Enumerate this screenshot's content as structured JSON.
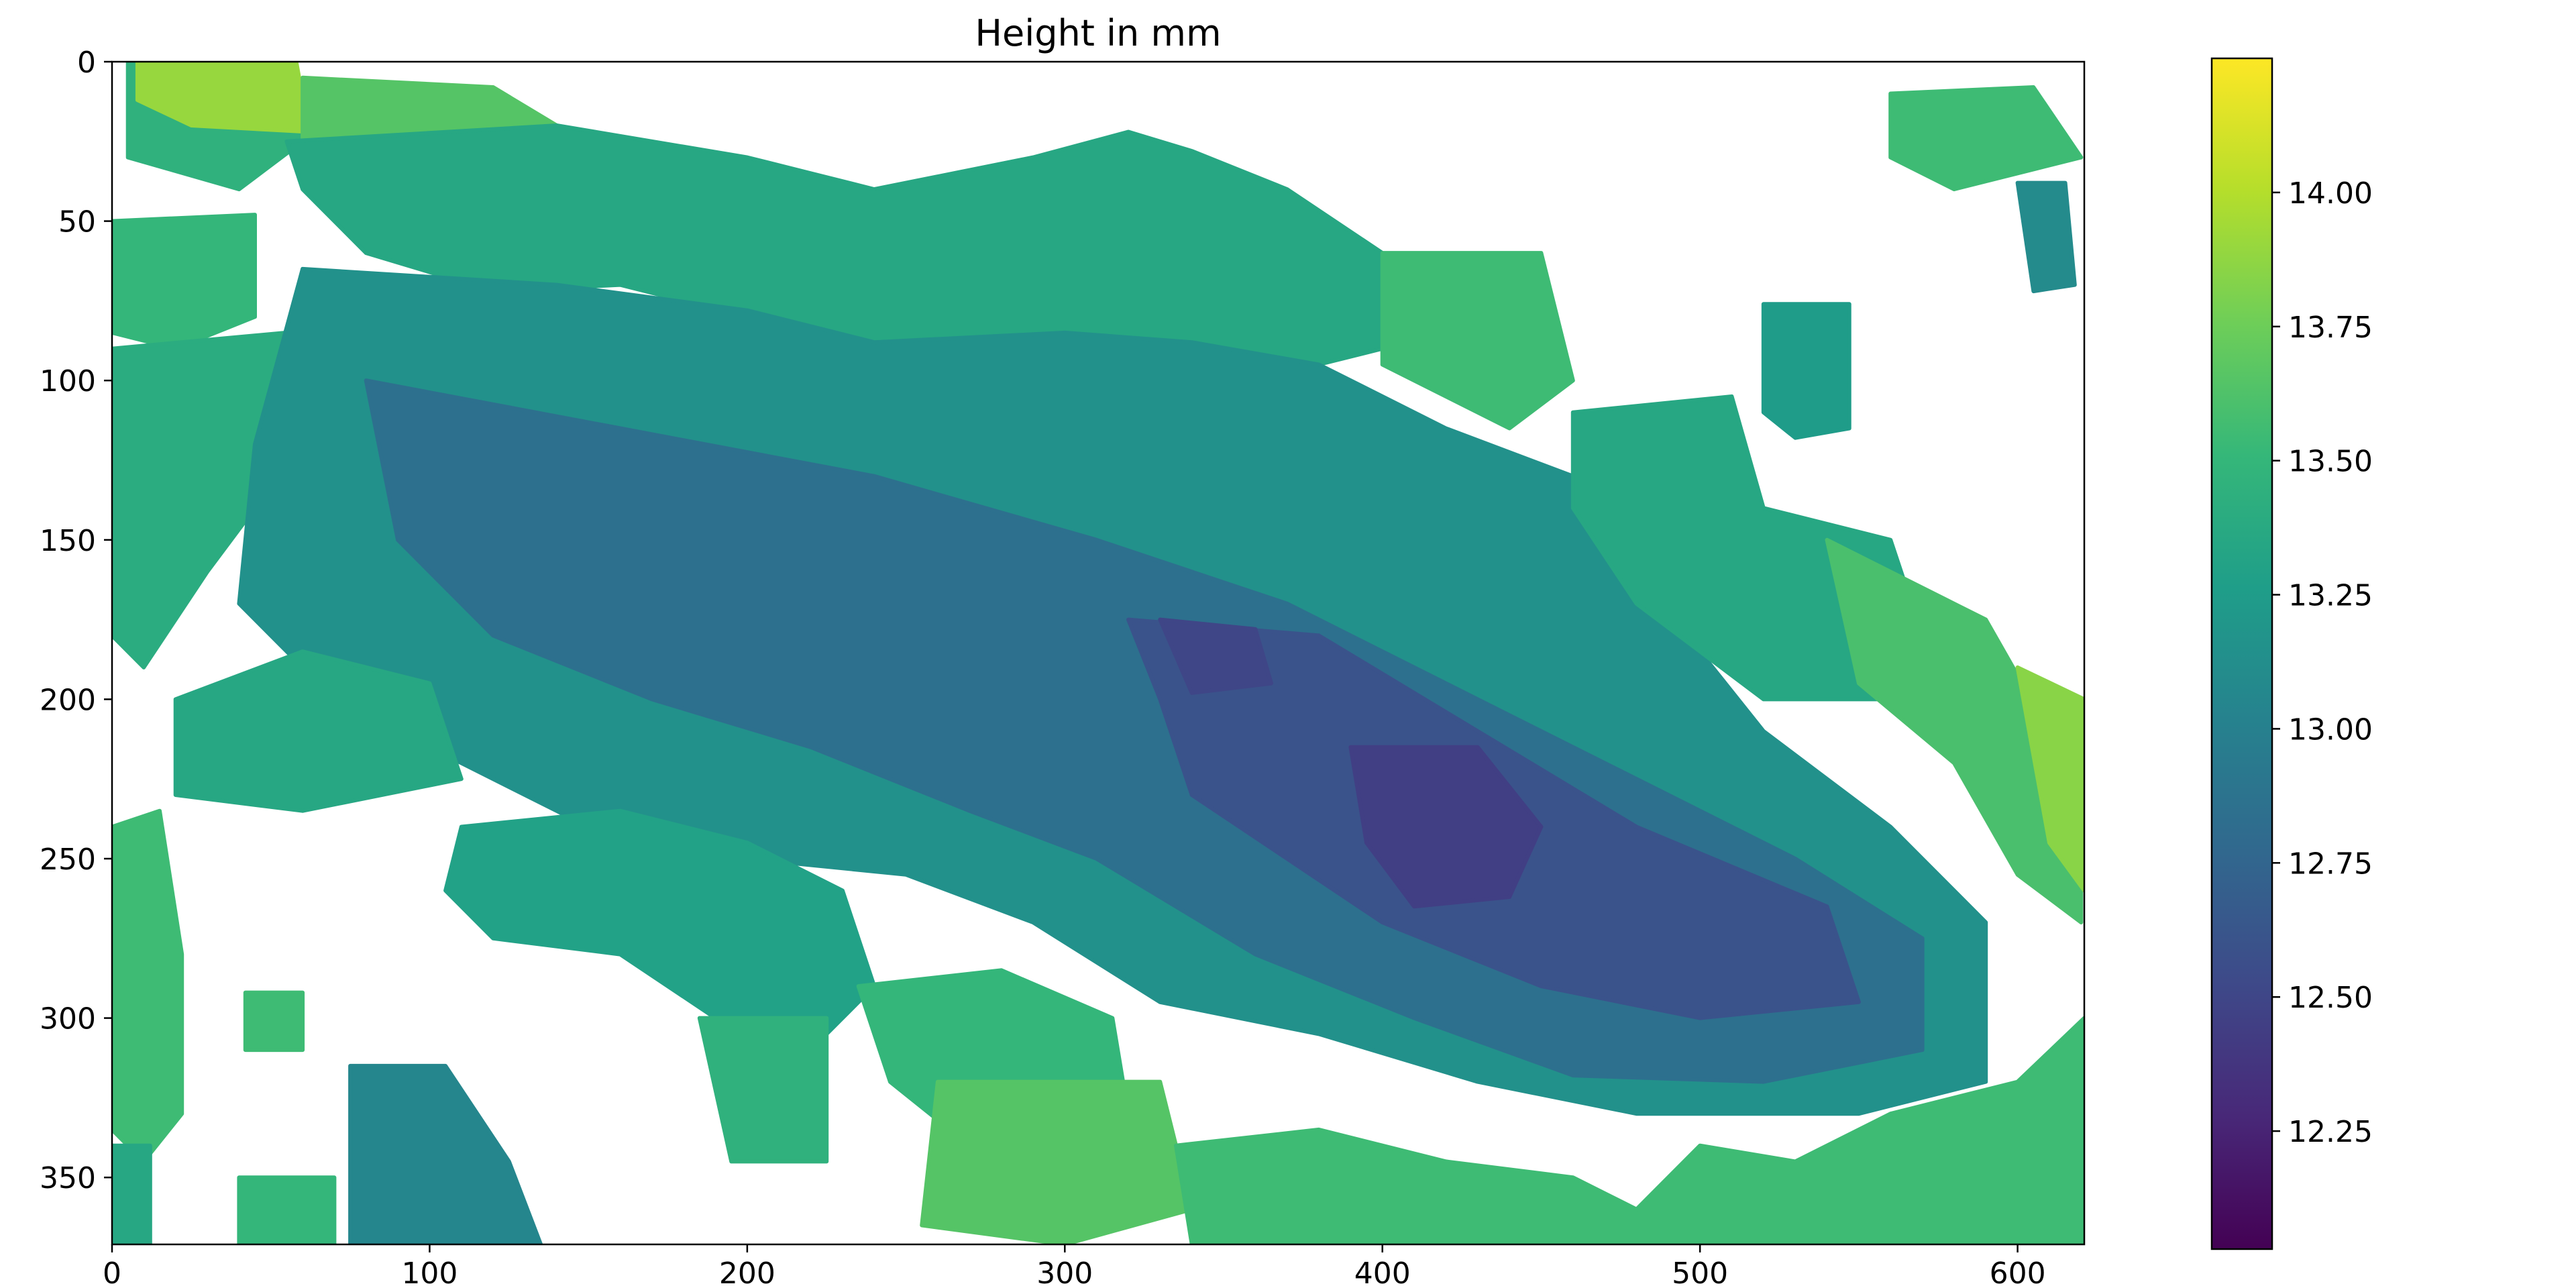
{
  "chart_data": {
    "type": "heatmap",
    "title": "Height in mm",
    "xlabel": "",
    "ylabel": "",
    "xlim": [
      0,
      621
    ],
    "ylim": [
      371,
      0
    ],
    "x_ticks": [
      0,
      100,
      200,
      300,
      400,
      500,
      600
    ],
    "y_ticks": [
      0,
      50,
      100,
      150,
      200,
      250,
      300,
      350
    ],
    "colormap": "viridis",
    "colorbar": {
      "vmin": 12.03,
      "vmax": 14.25,
      "ticks": [
        "12.25",
        "12.50",
        "12.75",
        "13.00",
        "13.25",
        "13.50",
        "13.75",
        "14.00"
      ],
      "colors": [
        "#440154",
        "#482878",
        "#3e4989",
        "#31688e",
        "#26828e",
        "#1f9e89",
        "#35b779",
        "#6ece58",
        "#b5de2b",
        "#fde725"
      ]
    },
    "missing_color": "#ffffff",
    "regions": [
      {
        "value": 13.45,
        "polygon": [
          [
            5,
            0
          ],
          [
            55,
            0
          ],
          [
            60,
            25
          ],
          [
            40,
            40
          ],
          [
            5,
            30
          ]
        ]
      },
      {
        "value": 13.9,
        "polygon": [
          [
            8,
            0
          ],
          [
            58,
            0
          ],
          [
            62,
            22
          ],
          [
            25,
            20
          ],
          [
            8,
            12
          ]
        ]
      },
      {
        "value": 13.65,
        "polygon": [
          [
            60,
            5
          ],
          [
            120,
            8
          ],
          [
            140,
            20
          ],
          [
            80,
            30
          ],
          [
            60,
            25
          ]
        ]
      },
      {
        "value": 13.35,
        "polygon": [
          [
            55,
            25
          ],
          [
            140,
            20
          ],
          [
            200,
            30
          ],
          [
            240,
            40
          ],
          [
            290,
            30
          ],
          [
            320,
            22
          ],
          [
            340,
            28
          ],
          [
            370,
            40
          ],
          [
            400,
            60
          ],
          [
            420,
            85
          ],
          [
            380,
            95
          ],
          [
            300,
            85
          ],
          [
            240,
            90
          ],
          [
            200,
            80
          ],
          [
            160,
            70
          ],
          [
            120,
            72
          ],
          [
            80,
            60
          ],
          [
            60,
            40
          ]
        ]
      },
      {
        "value": 13.5,
        "polygon": [
          [
            0,
            50
          ],
          [
            45,
            48
          ],
          [
            45,
            80
          ],
          [
            20,
            90
          ],
          [
            0,
            85
          ]
        ]
      },
      {
        "value": 13.4,
        "polygon": [
          [
            0,
            90
          ],
          [
            55,
            85
          ],
          [
            60,
            120
          ],
          [
            30,
            160
          ],
          [
            10,
            190
          ],
          [
            0,
            180
          ]
        ]
      },
      {
        "value": 13.15,
        "polygon": [
          [
            60,
            65
          ],
          [
            140,
            70
          ],
          [
            200,
            78
          ],
          [
            240,
            88
          ],
          [
            300,
            85
          ],
          [
            340,
            88
          ],
          [
            380,
            95
          ],
          [
            420,
            115
          ],
          [
            460,
            130
          ],
          [
            490,
            155
          ],
          [
            500,
            185
          ],
          [
            520,
            210
          ],
          [
            560,
            240
          ],
          [
            590,
            270
          ],
          [
            590,
            320
          ],
          [
            550,
            330
          ],
          [
            480,
            330
          ],
          [
            430,
            320
          ],
          [
            380,
            305
          ],
          [
            330,
            295
          ],
          [
            290,
            270
          ],
          [
            250,
            255
          ],
          [
            200,
            250
          ],
          [
            150,
            240
          ],
          [
            100,
            215
          ],
          [
            70,
            200
          ],
          [
            40,
            170
          ],
          [
            45,
            120
          ]
        ]
      },
      {
        "value": 12.85,
        "polygon": [
          [
            80,
            100
          ],
          [
            160,
            115
          ],
          [
            240,
            130
          ],
          [
            310,
            150
          ],
          [
            370,
            170
          ],
          [
            430,
            200
          ],
          [
            480,
            225
          ],
          [
            530,
            250
          ],
          [
            570,
            275
          ],
          [
            570,
            310
          ],
          [
            520,
            320
          ],
          [
            460,
            318
          ],
          [
            410,
            300
          ],
          [
            360,
            280
          ],
          [
            310,
            250
          ],
          [
            270,
            235
          ],
          [
            220,
            215
          ],
          [
            170,
            200
          ],
          [
            120,
            180
          ],
          [
            90,
            150
          ]
        ]
      },
      {
        "value": 12.6,
        "polygon": [
          [
            320,
            175
          ],
          [
            380,
            180
          ],
          [
            430,
            210
          ],
          [
            480,
            240
          ],
          [
            540,
            265
          ],
          [
            550,
            295
          ],
          [
            500,
            300
          ],
          [
            450,
            290
          ],
          [
            400,
            270
          ],
          [
            370,
            250
          ],
          [
            340,
            230
          ],
          [
            330,
            200
          ]
        ]
      },
      {
        "value": 12.45,
        "polygon": [
          [
            390,
            215
          ],
          [
            430,
            215
          ],
          [
            450,
            240
          ],
          [
            440,
            262
          ],
          [
            410,
            265
          ],
          [
            395,
            245
          ]
        ]
      },
      {
        "value": 12.5,
        "polygon": [
          [
            330,
            175
          ],
          [
            360,
            178
          ],
          [
            365,
            195
          ],
          [
            340,
            198
          ]
        ]
      },
      {
        "value": 13.55,
        "polygon": [
          [
            400,
            60
          ],
          [
            450,
            60
          ],
          [
            460,
            100
          ],
          [
            440,
            115
          ],
          [
            400,
            95
          ]
        ]
      },
      {
        "value": 13.35,
        "polygon": [
          [
            460,
            110
          ],
          [
            510,
            105
          ],
          [
            520,
            140
          ],
          [
            560,
            150
          ],
          [
            570,
            180
          ],
          [
            580,
            200
          ],
          [
            520,
            200
          ],
          [
            480,
            170
          ],
          [
            460,
            140
          ]
        ]
      },
      {
        "value": 13.6,
        "polygon": [
          [
            540,
            150
          ],
          [
            590,
            175
          ],
          [
            610,
            210
          ],
          [
            620,
            240
          ],
          [
            620,
            270
          ],
          [
            600,
            255
          ],
          [
            580,
            220
          ],
          [
            550,
            195
          ]
        ]
      },
      {
        "value": 13.25,
        "polygon": [
          [
            520,
            76
          ],
          [
            547,
            76
          ],
          [
            547,
            115
          ],
          [
            530,
            118
          ],
          [
            520,
            110
          ]
        ]
      },
      {
        "value": 13.55,
        "polygon": [
          [
            560,
            10
          ],
          [
            605,
            8
          ],
          [
            620,
            30
          ],
          [
            580,
            40
          ],
          [
            560,
            30
          ]
        ]
      },
      {
        "value": 13.1,
        "polygon": [
          [
            600,
            38
          ],
          [
            615,
            38
          ],
          [
            618,
            70
          ],
          [
            605,
            72
          ]
        ]
      },
      {
        "value": 13.55,
        "polygon": [
          [
            0,
            240
          ],
          [
            15,
            235
          ],
          [
            22,
            280
          ],
          [
            22,
            330
          ],
          [
            10,
            345
          ],
          [
            0,
            335
          ]
        ]
      },
      {
        "value": 13.35,
        "polygon": [
          [
            20,
            200
          ],
          [
            60,
            185
          ],
          [
            100,
            195
          ],
          [
            110,
            225
          ],
          [
            60,
            235
          ],
          [
            20,
            230
          ]
        ]
      },
      {
        "value": 13.3,
        "polygon": [
          [
            110,
            240
          ],
          [
            160,
            235
          ],
          [
            200,
            245
          ],
          [
            230,
            260
          ],
          [
            240,
            290
          ],
          [
            225,
            305
          ],
          [
            190,
            300
          ],
          [
            160,
            280
          ],
          [
            120,
            275
          ],
          [
            105,
            260
          ]
        ]
      },
      {
        "value": 13.5,
        "polygon": [
          [
            235,
            290
          ],
          [
            280,
            285
          ],
          [
            315,
            300
          ],
          [
            320,
            330
          ],
          [
            300,
            345
          ],
          [
            270,
            340
          ],
          [
            245,
            320
          ]
        ]
      },
      {
        "value": 13.45,
        "polygon": [
          [
            185,
            300
          ],
          [
            225,
            300
          ],
          [
            225,
            345
          ],
          [
            195,
            345
          ]
        ]
      },
      {
        "value": 13.05,
        "polygon": [
          [
            75,
            315
          ],
          [
            105,
            315
          ],
          [
            125,
            345
          ],
          [
            135,
            371
          ],
          [
            75,
            371
          ]
        ]
      },
      {
        "value": 13.5,
        "polygon": [
          [
            40,
            350
          ],
          [
            70,
            350
          ],
          [
            70,
            371
          ],
          [
            40,
            371
          ]
        ]
      },
      {
        "value": 13.35,
        "polygon": [
          [
            0,
            340
          ],
          [
            12,
            340
          ],
          [
            12,
            371
          ],
          [
            0,
            371
          ]
        ]
      },
      {
        "value": 13.55,
        "polygon": [
          [
            42,
            292
          ],
          [
            60,
            292
          ],
          [
            60,
            310
          ],
          [
            42,
            310
          ]
        ]
      },
      {
        "value": 13.65,
        "polygon": [
          [
            260,
            320
          ],
          [
            330,
            320
          ],
          [
            340,
            360
          ],
          [
            300,
            371
          ],
          [
            255,
            365
          ]
        ]
      },
      {
        "value": 13.55,
        "polygon": [
          [
            335,
            340
          ],
          [
            380,
            335
          ],
          [
            420,
            345
          ],
          [
            460,
            350
          ],
          [
            480,
            360
          ],
          [
            500,
            340
          ],
          [
            530,
            345
          ],
          [
            560,
            330
          ],
          [
            600,
            320
          ],
          [
            621,
            300
          ],
          [
            621,
            371
          ],
          [
            340,
            371
          ]
        ]
      },
      {
        "value": 13.85,
        "polygon": [
          [
            600,
            190
          ],
          [
            621,
            200
          ],
          [
            621,
            260
          ],
          [
            610,
            245
          ]
        ]
      }
    ]
  }
}
